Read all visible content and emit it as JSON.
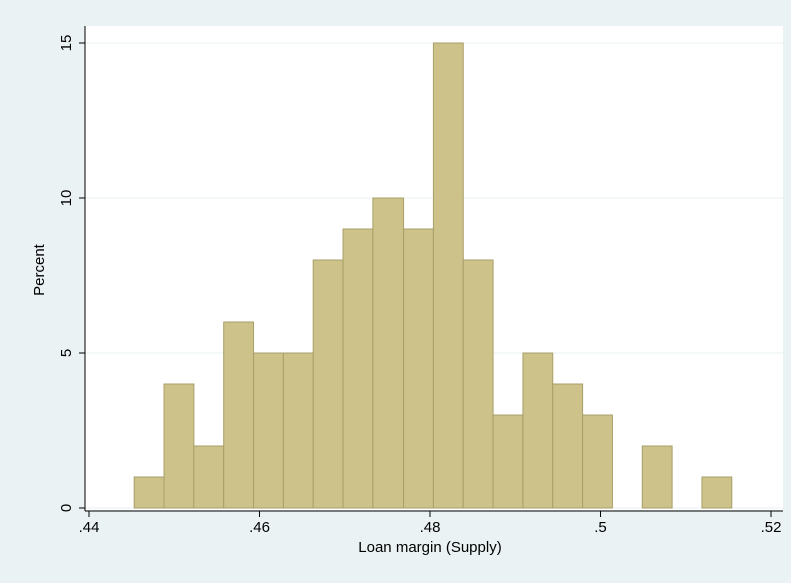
{
  "chart_data": {
    "type": "histogram",
    "xlabel": "Loan margin (Supply)",
    "ylabel": "Percent",
    "bins": [
      0.4453,
      0.4488,
      0.4523,
      0.4558,
      0.4593,
      0.4628,
      0.4663,
      0.4698,
      0.4733,
      0.4769,
      0.4804,
      0.4839,
      0.4874,
      0.4909,
      0.4944,
      0.4979,
      0.5014,
      0.5049,
      0.5084,
      0.5119,
      0.5154
    ],
    "values": [
      1,
      4,
      2,
      6,
      5,
      5,
      8,
      9,
      10,
      9,
      15,
      8,
      3,
      5,
      4,
      3,
      0,
      2,
      0,
      1
    ],
    "color": "#cdc28a",
    "edgecolor": "#a89f68",
    "xlim": [
      0.44,
      0.52
    ],
    "xticks": [
      {
        "value": 0.44,
        "label": ".44"
      },
      {
        "value": 0.46,
        "label": ".46"
      },
      {
        "value": 0.48,
        "label": ".48"
      },
      {
        "value": 0.5,
        "label": ".5"
      },
      {
        "value": 0.52,
        "label": ".52"
      }
    ],
    "ylim": [
      0,
      15
    ],
    "yticks": [
      0,
      5,
      10,
      15
    ],
    "grid": true
  }
}
